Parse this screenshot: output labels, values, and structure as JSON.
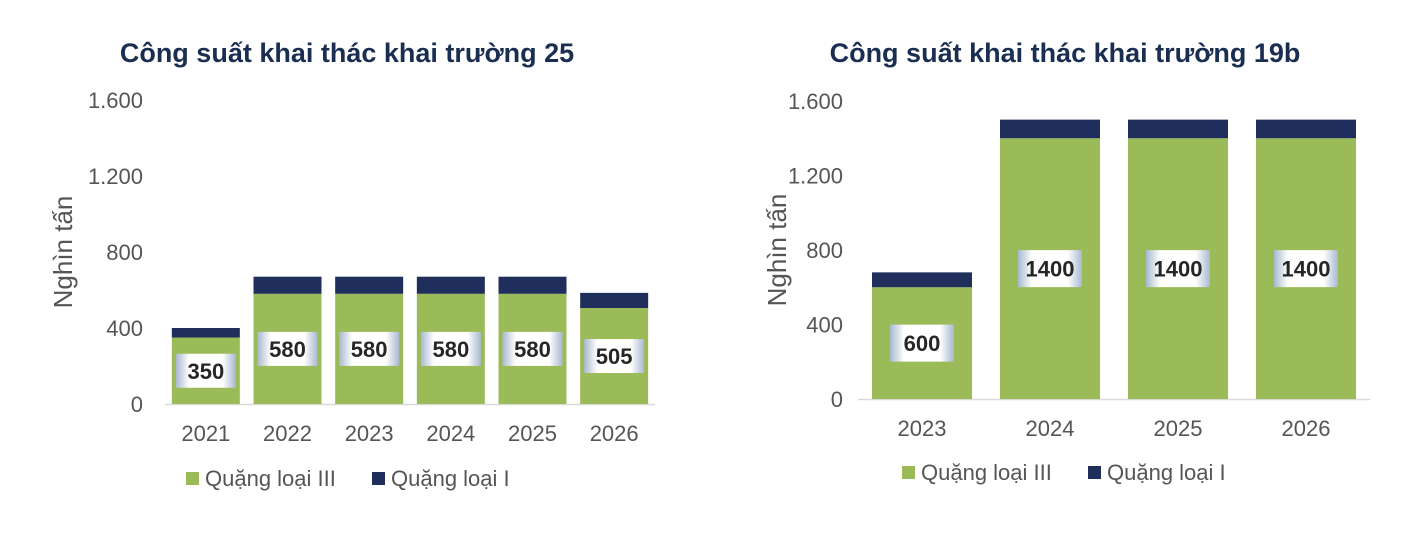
{
  "chart_data": [
    {
      "type": "bar",
      "stacked": true,
      "title": "Công suất khai thác khai trường 25",
      "ylabel": "Nghìn tấn",
      "xlabel": "",
      "ylim": [
        0,
        1600
      ],
      "yticks": [
        0,
        400,
        800,
        1200,
        1600
      ],
      "ytick_labels": [
        "0",
        "400",
        "800",
        "1.200",
        "1.600"
      ],
      "categories": [
        "2021",
        "2022",
        "2023",
        "2024",
        "2025",
        "2026"
      ],
      "series": [
        {
          "name": "Quặng loại III",
          "color": "#9bbb59",
          "values": [
            350,
            580,
            580,
            580,
            580,
            505
          ],
          "data_labels": [
            "350",
            "580",
            "580",
            "580",
            "580",
            "505"
          ]
        },
        {
          "name": "Quặng loại I",
          "color": "#1f2e5a",
          "values": [
            50,
            90,
            90,
            90,
            90,
            80
          ]
        }
      ],
      "legend": "bottom",
      "grid": false
    },
    {
      "type": "bar",
      "stacked": true,
      "title": "Công suất khai thác khai trường 19b",
      "ylabel": "Nghìn tấn",
      "xlabel": "",
      "ylim": [
        0,
        1600
      ],
      "yticks": [
        0,
        400,
        800,
        1200,
        1600
      ],
      "ytick_labels": [
        "0",
        "400",
        "800",
        "1.200",
        "1.600"
      ],
      "categories": [
        "2023",
        "2024",
        "2025",
        "2026"
      ],
      "series": [
        {
          "name": "Quặng loại III",
          "color": "#9bbb59",
          "values": [
            600,
            1400,
            1400,
            1400
          ],
          "data_labels": [
            "600",
            "1400",
            "1400",
            "1400"
          ]
        },
        {
          "name": "Quặng loại I",
          "color": "#1f2e5a",
          "values": [
            80,
            100,
            100,
            100
          ]
        }
      ],
      "legend": "bottom",
      "grid": false
    }
  ]
}
